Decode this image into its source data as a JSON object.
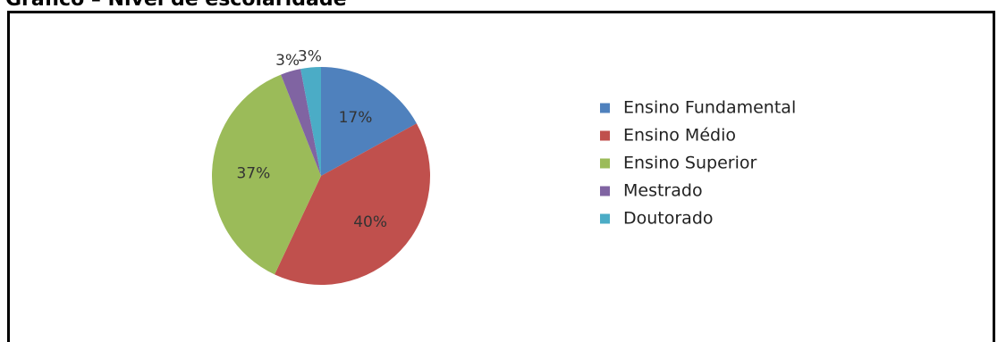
{
  "page": {
    "title": "Gráfico – Nível de escolaridade"
  },
  "chart_data": {
    "type": "pie",
    "title": "",
    "categories": [
      "Ensino Fundamental",
      "Ensino Médio",
      "Ensino Superior",
      "Mestrado",
      "Doutorado"
    ],
    "values": [
      17,
      40,
      37,
      3,
      3
    ],
    "labels": [
      "17%",
      "40%",
      "37%",
      "3%",
      "3%"
    ],
    "unit": "%",
    "colors": [
      "#4F81BD",
      "#C0504D",
      "#9BBB59",
      "#8064A2",
      "#4BACC6"
    ],
    "start_angle": "12 o'clock",
    "direction": "clockwise",
    "legend_position": "right"
  }
}
